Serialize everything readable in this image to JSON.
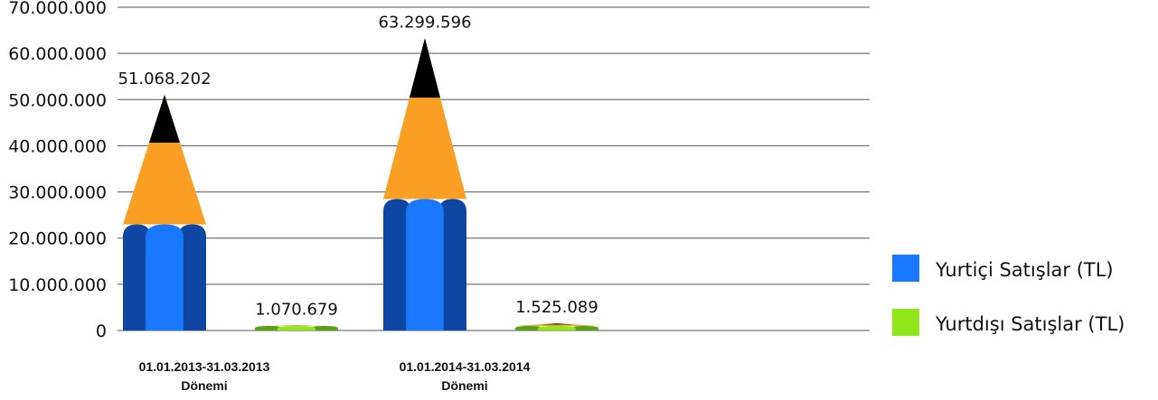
{
  "chart_data": {
    "type": "bar",
    "categories": [
      [
        "01.01.2013-31.03.2013",
        "Dönemi"
      ],
      [
        "01.01.2014-31.03.2014",
        "Dönemi"
      ]
    ],
    "series": [
      {
        "name": "Yurtiçi Satışlar (TL)",
        "values": [
          51068202,
          63299596
        ],
        "labels": [
          "51.068.202",
          "63.299.596"
        ],
        "color": "#1a78ff",
        "dark": "#0d47a1"
      },
      {
        "name": "Yurtdışı Satışlar (TL)",
        "values": [
          1070679,
          1525089
        ],
        "labels": [
          "1.070.679",
          "1.525.089"
        ],
        "color": "#8fe619",
        "dark": "#5aa11a"
      }
    ],
    "ylim": [
      0,
      70000000
    ],
    "yticks": [
      "0",
      "10.000.000",
      "20.000.000",
      "30.000.000",
      "40.000.000",
      "50.000.000",
      "60.000.000",
      "70.000.000"
    ],
    "grid": true,
    "legend_position": "right",
    "colors": {
      "wood": "#f9a024",
      "lead": "#000000",
      "grid": "#555555"
    }
  }
}
